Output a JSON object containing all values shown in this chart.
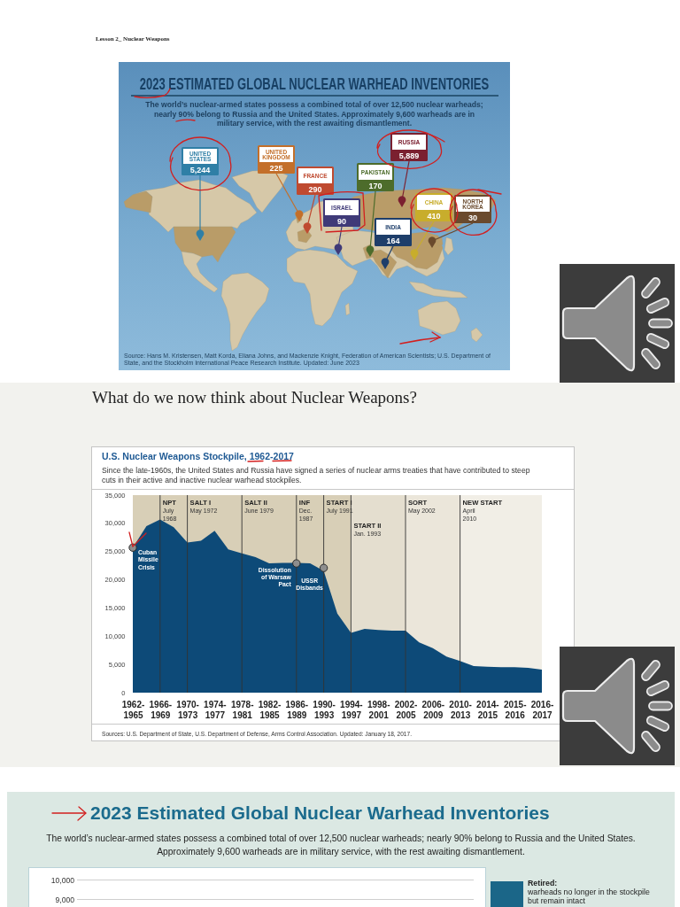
{
  "chart_data": [
    {
      "type": "other",
      "title": "2023 ESTIMATED GLOBAL NUCLEAR WARHEAD INVENTORIES",
      "subtitle": "The world’s nuclear-armed states possess a combined total of over 12,500 nuclear warheads; nearly 90% belong to Russia and the United States. Approximately 9,600 warheads are in military service, with the rest awaiting dismantlement.",
      "categories": [
        "UNITED STATES",
        "UNITED KINGDOM",
        "FRANCE",
        "ISRAEL",
        "PAKISTAN",
        "RUSSIA",
        "INDIA",
        "CHINA",
        "NORTH KOREA"
      ],
      "values": [
        5244,
        225,
        290,
        90,
        170,
        5889,
        164,
        410,
        30
      ],
      "value_labels": [
        "5,244",
        "225",
        "290",
        "90",
        "170",
        "5,889",
        "164",
        "410",
        "30"
      ],
      "colors": [
        "#2f7fa6",
        "#c36f2a",
        "#bf4a30",
        "#3f3a78",
        "#4d6c2b",
        "#7b2030",
        "#1e3e6a",
        "#c8ad2c",
        "#6a4a2d"
      ],
      "annotations": [
        "Lesson 2_ Nuclear Weapons",
        "Source: Hans M. Kristensen, Matt Korda, Eliana Johns, and Mackenzie Knight, Federation of American Scientists; U.S. Department of State, and the Stockholm International Peace Research Institute. Updated: June 2023"
      ]
    },
    {
      "type": "area",
      "title": "U.S. Nuclear Weapons Stockpile, 1962-2017",
      "subtitle": "Since the late-1960s, the United States and Russia have signed a series of nuclear arms treaties that have contributed to steep cuts in their active and inactive nuclear warhead stockpiles.",
      "categories": [
        "1962-1965",
        null,
        "1966-1969",
        null,
        "1970-1973",
        null,
        "1974-1977",
        null,
        "1978-1981",
        null,
        "1982-1985",
        null,
        "1986-1989",
        null,
        "1990-1993",
        null,
        "1994-1997",
        null,
        "1998-2001",
        null,
        "2002-2005",
        null,
        "2006-2009",
        null,
        "2010-2013",
        null,
        "2014-2015",
        null,
        "2015-2016",
        null,
        "2016-2017"
      ],
      "series": [
        {
          "color": "#0d4a78",
          "values": [
            25700,
            29500,
            30700,
            29300,
            26600,
            26900,
            28700,
            25400,
            24700,
            24000,
            22900,
            23000,
            23000,
            22900,
            21600,
            14000,
            10600,
            11300,
            11100,
            11000,
            11000,
            8900,
            7900,
            6400,
            5600,
            4700,
            4600,
            4500,
            4500,
            4400,
            4100
          ]
        }
      ],
      "ylim": [
        0,
        35000
      ],
      "yticks": [
        0,
        {
          "value": 5000,
          "label": "5,000"
        },
        {
          "value": 10000,
          "label": "10,000"
        },
        {
          "value": 15000,
          "label": "15,000"
        },
        {
          "value": 20000,
          "label": "20,000"
        },
        {
          "value": 25000,
          "label": "25,000"
        },
        {
          "value": 30000,
          "label": "30,000"
        },
        {
          "value": 35000,
          "label": "35,000"
        }
      ],
      "bands": [
        {
          "axis": "x",
          "from": "1962-1965",
          "to": "1994-1997",
          "color": "#d8cfb7"
        },
        {
          "axis": "x",
          "from": "1994-1997",
          "to": "2002-2005",
          "color": "#e4decf"
        },
        {
          "axis": "x",
          "from": "2002-2005",
          "to": "2010-2013",
          "color": "#ebe6da"
        },
        {
          "axis": "x",
          "from": "2010-2013",
          "to": "2016-2017",
          "color": "#f1eee6"
        }
      ],
      "ref_lines": [
        {
          "axis": "x",
          "value": "1966-1969",
          "label": "NPT\nJuly\n1968",
          "color": "#333333"
        },
        {
          "axis": "x",
          "value": "1970-1973",
          "label": "SALT I\nMay 1972",
          "color": "#333333"
        },
        {
          "axis": "x",
          "value": "1978-1981",
          "label": "SALT II\nJune 1979",
          "color": "#333333"
        },
        {
          "axis": "x",
          "value": "1986-1989",
          "label": "INF\nDec.\n1987",
          "color": "#333333"
        },
        {
          "axis": "x",
          "value": "1990-1993",
          "label": "START I\nJuly 1991",
          "color": "#333333"
        },
        {
          "axis": "x",
          "value": "1994-1997",
          "label": "START II\nJan. 1993",
          "color": "#333333"
        },
        {
          "axis": "x",
          "value": "2002-2005",
          "label": "SORT\nMay 2002",
          "color": "#333333"
        },
        {
          "axis": "x",
          "value": "2010-2013",
          "label": "NEW START\nApril\n2010",
          "color": "#333333"
        }
      ],
      "annotations": [
        "What do we now think about Nuclear Weapons?",
        {
          "text": "Cuban Missile Crisis",
          "x": "1962-1965",
          "y": 25700
        },
        {
          "text": "Dissolution of Warsaw Pact",
          "x": "1986-1989",
          "y": 22900
        },
        {
          "text": "USSR Disbands",
          "x": "1990-1993",
          "y": 22100
        },
        "Sources: U.S. Department of State, U.S. Department of Defense, Arms Control Association. Updated: January 18, 2017."
      ]
    },
    {
      "type": "other",
      "title": "2023 Estimated Global Nuclear Warhead Inventories",
      "subtitle": "The world’s nuclear-armed states possess a combined total of over 12,500 nuclear warheads; nearly 90% belong to Russia and the United States. Approximately 9,600 warheads are in military service, with the rest awaiting dismantlement.",
      "annotations": [
        "10,000",
        "9,000",
        "Retired: warheads no longer in the stockpile but remain intact"
      ]
    }
  ]
}
